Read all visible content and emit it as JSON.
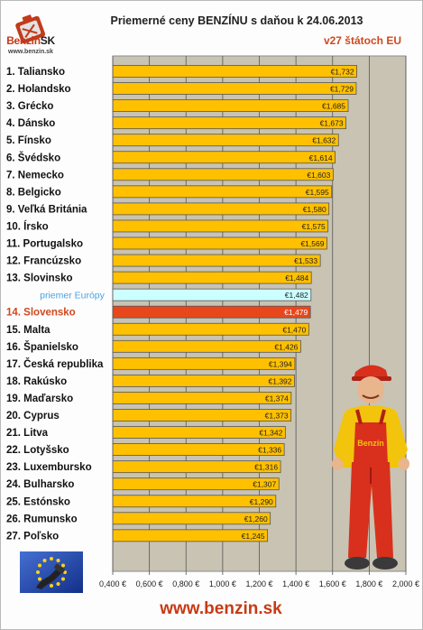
{
  "logo": {
    "brand_part1": "Benzin",
    "brand_part2": "SK",
    "url": "www.benzin.sk"
  },
  "header": {
    "title": "Priemerné ceny BENZÍNU s daňou k 24.06.2013",
    "subtitle": "v27 štátoch EU"
  },
  "footer": {
    "url": "www.benzin.sk"
  },
  "mechanic": {
    "badge": "Benzín"
  },
  "colors": {
    "bar": "#ffc000",
    "bar_highlight": "#e8471c",
    "bar_average": "#ccffff",
    "plot_bg": "#c9c3b3",
    "label_highlight": "#d0481e",
    "label_average": "#4aa3e6"
  },
  "chart_data": {
    "type": "bar",
    "orientation": "horizontal",
    "categories": [
      "1. Taliansko",
      "2. Holandsko",
      "3. Grécko",
      "4. Dánsko",
      "5. Fínsko",
      "6. Švédsko",
      "7. Nemecko",
      "8. Belgicko",
      "9. Veľká Británia",
      "10. Írsko",
      "11. Portugalsko",
      "12. Francúzsko",
      "13. Slovinsko",
      "priemer Európy",
      "14. Slovensko",
      "15. Malta",
      "16. Španielsko",
      "17. Česká republika",
      "18. Rakúsko",
      "19. Maďarsko",
      "20. Cyprus",
      "21. Litva",
      "22. Lotyšsko",
      "23. Luxembursko",
      "24. Bulharsko",
      "25. Estónsko",
      "26. Rumunsko",
      "27. Poľsko"
    ],
    "values": [
      1.732,
      1.729,
      1.685,
      1.673,
      1.632,
      1.614,
      1.603,
      1.595,
      1.58,
      1.575,
      1.569,
      1.533,
      1.484,
      1.482,
      1.479,
      1.47,
      1.426,
      1.394,
      1.392,
      1.374,
      1.373,
      1.342,
      1.336,
      1.316,
      1.307,
      1.29,
      1.26,
      1.245
    ],
    "data_labels": [
      "€1,732",
      "€1,729",
      "€1,685",
      "€1,673",
      "€1,632",
      "€1,614",
      "€1,603",
      "€1,595",
      "€1,580",
      "€1,575",
      "€1,569",
      "€1,533",
      "€1,484",
      "€1,482",
      "€1,479",
      "€1,470",
      "€1,426",
      "€1,394",
      "€1,392",
      "€1,374",
      "€1,373",
      "€1,342",
      "€1,336",
      "€1,316",
      "€1,307",
      "€1,290",
      "€1,260",
      "€1,245"
    ],
    "highlight": "14. Slovensko",
    "average": "priemer Európy",
    "xlim": [
      0.4,
      2.0
    ],
    "ticks": [
      0.4,
      0.6,
      0.8,
      1.0,
      1.2,
      1.4,
      1.6,
      1.8,
      2.0
    ],
    "tick_labels": [
      "0,400 €",
      "0,600 €",
      "0,800 €",
      "1,000 €",
      "1,200 €",
      "1,400 €",
      "1,600 €",
      "1,800 €",
      "2,000 €"
    ],
    "title": "Priemerné ceny BENZÍNU s daňou k 24.06.2013",
    "grid": true,
    "legend": "none"
  }
}
